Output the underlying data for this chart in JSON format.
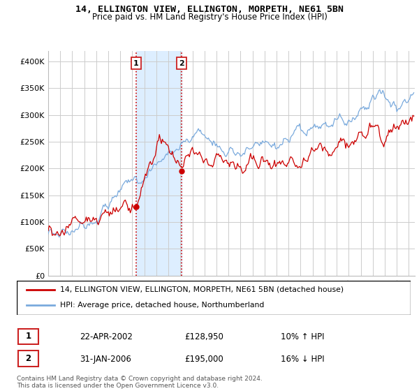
{
  "title": "14, ELLINGTON VIEW, ELLINGTON, MORPETH, NE61 5BN",
  "subtitle": "Price paid vs. HM Land Registry's House Price Index (HPI)",
  "ylim": [
    0,
    420000
  ],
  "yticks": [
    0,
    50000,
    100000,
    150000,
    200000,
    250000,
    300000,
    350000,
    400000
  ],
  "ytick_labels": [
    "£0",
    "£50K",
    "£100K",
    "£150K",
    "£200K",
    "£250K",
    "£300K",
    "£350K",
    "£400K"
  ],
  "background_color": "#ffffff",
  "grid_color": "#cccccc",
  "sale1_date": 2002.31,
  "sale1_price": 128950,
  "sale2_date": 2006.08,
  "sale2_price": 195000,
  "house_color": "#cc0000",
  "hpi_color": "#7aaadd",
  "vline_color": "#cc0000",
  "shade_color": "#ddeeff",
  "legend_house": "14, ELLINGTON VIEW, ELLINGTON, MORPETH, NE61 5BN (detached house)",
  "legend_hpi": "HPI: Average price, detached house, Northumberland",
  "table_row1": [
    "1",
    "22-APR-2002",
    "£128,950",
    "10% ↑ HPI"
  ],
  "table_row2": [
    "2",
    "31-JAN-2006",
    "£195,000",
    "16% ↓ HPI"
  ],
  "footer": "Contains HM Land Registry data © Crown copyright and database right 2024.\nThis data is licensed under the Open Government Licence v3.0."
}
